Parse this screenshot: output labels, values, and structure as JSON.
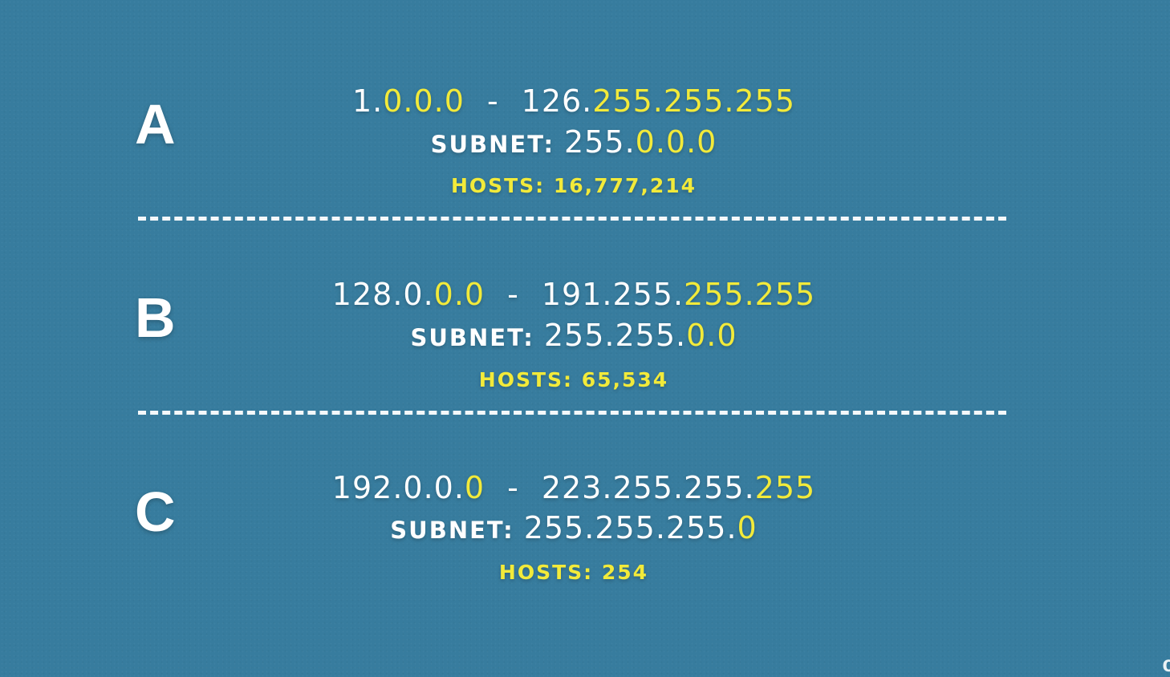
{
  "classes": [
    {
      "letter": "A",
      "range": {
        "start_white": "1.",
        "start_yellow": "0.0.0",
        "dash": "-",
        "end_white": "126.",
        "end_yellow": "255.255.255"
      },
      "subnet": {
        "label": "SUBNET:",
        "white": "255.",
        "yellow": "0.0.0"
      },
      "hosts": "HOSTS: 16,777,214"
    },
    {
      "letter": "B",
      "range": {
        "start_white": "128.0.",
        "start_yellow": "0.0",
        "dash": "-",
        "end_white": "191.255.",
        "end_yellow": "255.255"
      },
      "subnet": {
        "label": "SUBNET:",
        "white": "255.255.",
        "yellow": "0.0"
      },
      "hosts": "HOSTS: 65,534"
    },
    {
      "letter": "C",
      "range": {
        "start_white": "192.0.0.",
        "start_yellow": "0",
        "dash": "-",
        "end_white": "223.255.255.",
        "end_yellow": "255"
      },
      "subnet": {
        "label": "SUBNET:",
        "white": "255.255.255.",
        "yellow": "0"
      },
      "hosts": "HOSTS: 254"
    }
  ],
  "corner_mark": "c",
  "colors": {
    "background": "#377c9e",
    "text": "#ffffff",
    "highlight": "#f2ea3a"
  }
}
